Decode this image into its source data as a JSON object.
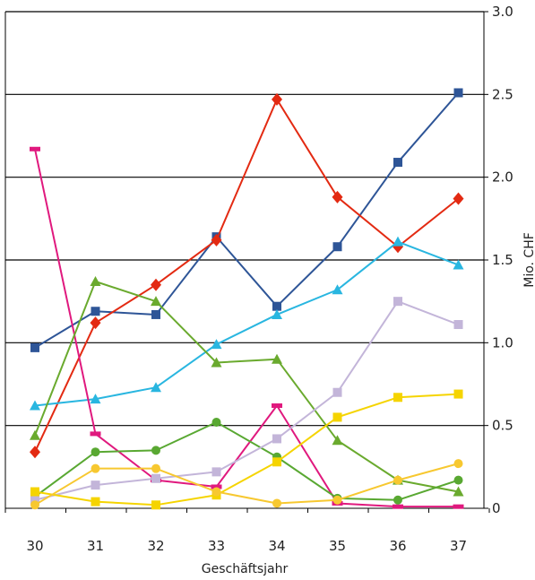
{
  "chart_data": {
    "type": "line",
    "title": "",
    "xlabel": "Geschäftsjahr",
    "ylabel": "Mio. CHF",
    "categories": [
      "30",
      "31",
      "32",
      "33",
      "34",
      "35",
      "36",
      "37"
    ],
    "ylim": [
      0,
      3.0
    ],
    "ytick_labels": [
      "0",
      "0.5",
      "1.0",
      "1.5",
      "2.0",
      "2.5",
      "3.0"
    ],
    "grid": "horizontal",
    "series": [
      {
        "color": "#2e5597",
        "marker": "square",
        "values": [
          0.97,
          1.19,
          1.17,
          1.64,
          1.22,
          1.58,
          2.09,
          2.51
        ]
      },
      {
        "color": "#e32a12",
        "marker": "diamond",
        "values": [
          0.34,
          1.12,
          1.35,
          1.62,
          2.47,
          1.88,
          1.58,
          1.87
        ]
      },
      {
        "color": "#29b6e0",
        "marker": "triangle",
        "values": [
          0.62,
          0.66,
          0.73,
          0.99,
          1.17,
          1.32,
          1.61,
          1.47
        ]
      },
      {
        "color": "#e0197e",
        "marker": "dash",
        "values": [
          2.17,
          0.45,
          0.17,
          0.13,
          0.62,
          0.03,
          0.01,
          0.01
        ]
      },
      {
        "color": "#6aaa2e",
        "marker": "triangle",
        "values": [
          0.44,
          1.37,
          1.25,
          0.88,
          0.9,
          0.41,
          0.17,
          0.1
        ]
      },
      {
        "color": "#59a832",
        "marker": "circle",
        "values": [
          0.07,
          0.34,
          0.35,
          0.52,
          0.31,
          0.06,
          0.05,
          0.17
        ]
      },
      {
        "color": "#c3b5d9",
        "marker": "square",
        "values": [
          0.05,
          0.14,
          0.18,
          0.22,
          0.42,
          0.7,
          1.25,
          1.11
        ]
      },
      {
        "color": "#f5d400",
        "marker": "square",
        "values": [
          0.1,
          0.04,
          0.02,
          0.08,
          0.28,
          0.55,
          0.67,
          0.69
        ]
      },
      {
        "color": "#f7c830",
        "marker": "circle",
        "values": [
          0.02,
          0.24,
          0.24,
          0.1,
          0.03,
          0.05,
          0.17,
          0.27
        ]
      }
    ]
  }
}
